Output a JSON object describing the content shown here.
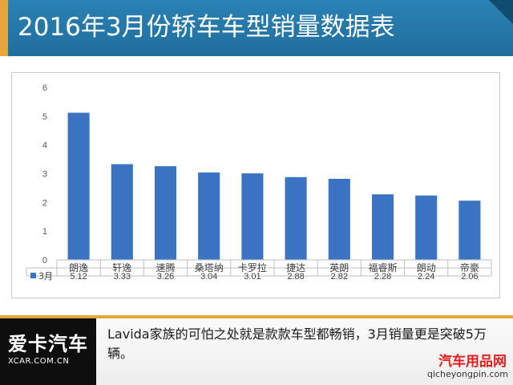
{
  "header": {
    "title": "2016年3月份轿车车型销量数据表"
  },
  "chart_data": {
    "type": "bar",
    "title": "",
    "xlabel": "",
    "ylabel": "",
    "ylim": [
      0,
      6
    ],
    "yticks": [
      0,
      1,
      2,
      3,
      4,
      5,
      6
    ],
    "grid": false,
    "legend_position": "table-left",
    "categories": [
      "朗逸",
      "轩逸",
      "速腾",
      "桑塔纳",
      "卡罗拉",
      "捷达",
      "英朗",
      "福睿斯",
      "朗动",
      "帝豪"
    ],
    "series": [
      {
        "name": "3月",
        "values": [
          5.12,
          3.33,
          3.26,
          3.04,
          3.01,
          2.88,
          2.82,
          2.28,
          2.24,
          2.06
        ],
        "labels": [
          "5.12",
          "3.33",
          "3.26",
          "3.04",
          "3.01",
          "2.88",
          "2.82",
          "2.28",
          "2.24",
          "2.06"
        ],
        "color": "#3a74c2"
      }
    ],
    "data_table": true
  },
  "footer": {
    "logo_text": "爱卡汽车",
    "logo_sub": "XCAR.COM.CN",
    "caption": "Lavida家族的可怕之处就是款款车型都畅销，3月销量更是突破5万辆。",
    "watermark_text": "汽车用品网",
    "watermark_url": "qicheyongpin.com"
  },
  "colors": {
    "header_bg": "#1f6e9c",
    "accent": "#e8a63a",
    "bar": "#3a74c2",
    "watermark": "#e41e1e"
  }
}
